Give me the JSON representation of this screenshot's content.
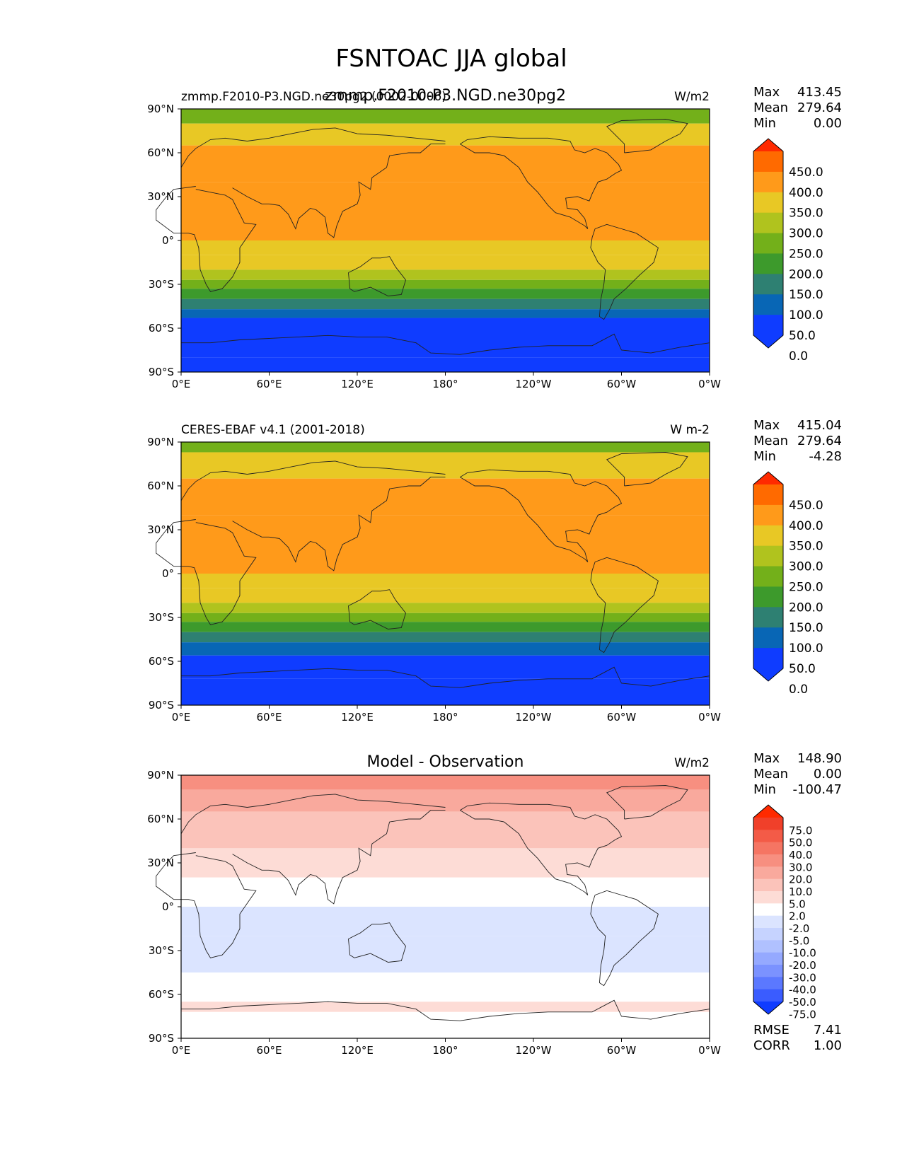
{
  "figure": {
    "title": "FSNTOAC JJA global"
  },
  "chart_data": [
    {
      "type": "heatmap",
      "title_left": "zmmp.F2010-P3.NGD.ne30pg2 (0002-0006)",
      "title_center": "zmmp.F2010-P3.NGD.ne30pg2",
      "units": "W/m2",
      "x_ticks": [
        "0°E",
        "60°E",
        "120°E",
        "180°",
        "120°W",
        "60°W",
        "0°W"
      ],
      "y_ticks": [
        "90°N",
        "60°N",
        "30°N",
        "0°",
        "30°S",
        "60°S",
        "90°S"
      ],
      "stats": [
        {
          "label": "Max",
          "value": "413.45"
        },
        {
          "label": "Mean",
          "value": "279.64"
        },
        {
          "label": "Min",
          "value": "0.00"
        }
      ],
      "colorbar": {
        "levels": [
          "450.0",
          "400.0",
          "350.0",
          "300.0",
          "250.0",
          "200.0",
          "150.0",
          "100.0",
          "50.0",
          "0.0"
        ],
        "colors": [
          "#ff2a00",
          "#ff6a00",
          "#ff9a1a",
          "#e8c825",
          "#b0c31e",
          "#73b01a",
          "#3d9a2c",
          "#2e8072",
          "#0866b5",
          "#0f3cff",
          "#0f3cff"
        ]
      },
      "bands": [
        {
          "lat_top": 90,
          "lat_bottom": 80,
          "value": 220
        },
        {
          "lat_top": 80,
          "lat_bottom": 65,
          "value": 300
        },
        {
          "lat_top": 65,
          "lat_bottom": 40,
          "value": 360
        },
        {
          "lat_top": 40,
          "lat_bottom": 15,
          "value": 390
        },
        {
          "lat_top": 15,
          "lat_bottom": 0,
          "value": 360
        },
        {
          "lat_top": 0,
          "lat_bottom": -10,
          "value": 330
        },
        {
          "lat_top": -10,
          "lat_bottom": -20,
          "value": 300
        },
        {
          "lat_top": -20,
          "lat_bottom": -27,
          "value": 260
        },
        {
          "lat_top": -27,
          "lat_bottom": -33,
          "value": 220
        },
        {
          "lat_top": -33,
          "lat_bottom": -40,
          "value": 180
        },
        {
          "lat_top": -40,
          "lat_bottom": -47,
          "value": 130
        },
        {
          "lat_top": -47,
          "lat_bottom": -53,
          "value": 80
        },
        {
          "lat_top": -53,
          "lat_bottom": -80,
          "value": 30
        },
        {
          "lat_top": -80,
          "lat_bottom": -90,
          "value": 0
        }
      ]
    },
    {
      "type": "heatmap",
      "title_left": "CERES-EBAF v4.1 (2001-2018)",
      "title_center": "",
      "units": "W m-2",
      "x_ticks": [
        "0°E",
        "60°E",
        "120°E",
        "180°",
        "120°W",
        "60°W",
        "0°W"
      ],
      "y_ticks": [
        "90°N",
        "60°N",
        "30°N",
        "0°",
        "30°S",
        "60°S",
        "90°S"
      ],
      "stats": [
        {
          "label": "Max",
          "value": "415.04"
        },
        {
          "label": "Mean",
          "value": "279.64"
        },
        {
          "label": "Min",
          "value": "-4.28"
        }
      ],
      "colorbar": {
        "levels": [
          "450.0",
          "400.0",
          "350.0",
          "300.0",
          "250.0",
          "200.0",
          "150.0",
          "100.0",
          "50.0",
          "0.0"
        ],
        "colors": [
          "#ff2a00",
          "#ff6a00",
          "#ff9a1a",
          "#e8c825",
          "#b0c31e",
          "#73b01a",
          "#3d9a2c",
          "#2e8072",
          "#0866b5",
          "#0f3cff",
          "#0f3cff"
        ]
      },
      "bands": [
        {
          "lat_top": 90,
          "lat_bottom": 83,
          "value": 220
        },
        {
          "lat_top": 83,
          "lat_bottom": 65,
          "value": 300
        },
        {
          "lat_top": 65,
          "lat_bottom": 40,
          "value": 360
        },
        {
          "lat_top": 40,
          "lat_bottom": 15,
          "value": 390
        },
        {
          "lat_top": 15,
          "lat_bottom": 0,
          "value": 360
        },
        {
          "lat_top": 0,
          "lat_bottom": -10,
          "value": 330
        },
        {
          "lat_top": -10,
          "lat_bottom": -20,
          "value": 300
        },
        {
          "lat_top": -20,
          "lat_bottom": -27,
          "value": 260
        },
        {
          "lat_top": -27,
          "lat_bottom": -33,
          "value": 220
        },
        {
          "lat_top": -33,
          "lat_bottom": -40,
          "value": 180
        },
        {
          "lat_top": -40,
          "lat_bottom": -47,
          "value": 130
        },
        {
          "lat_top": -47,
          "lat_bottom": -56,
          "value": 80
        },
        {
          "lat_top": -56,
          "lat_bottom": -72,
          "value": 30
        },
        {
          "lat_top": -72,
          "lat_bottom": -90,
          "value": 0
        }
      ]
    },
    {
      "type": "heatmap",
      "title_left": "",
      "title_center": "Model - Observation",
      "units": "W/m2",
      "x_ticks": [
        "0°E",
        "60°E",
        "120°E",
        "180°",
        "120°W",
        "60°W",
        "0°W"
      ],
      "y_ticks": [
        "90°N",
        "60°N",
        "30°N",
        "0°",
        "30°S",
        "60°S",
        "90°S"
      ],
      "stats": [
        {
          "label": "Max",
          "value": "148.90"
        },
        {
          "label": "Mean",
          "value": "0.00"
        },
        {
          "label": "Min",
          "value": "-100.47"
        }
      ],
      "colorbar": {
        "levels": [
          "75.0",
          "50.0",
          "40.0",
          "30.0",
          "20.0",
          "10.0",
          "5.0",
          "2.0",
          "-2.0",
          "-5.0",
          "-10.0",
          "-20.0",
          "-30.0",
          "-40.0",
          "-50.0",
          "-75.0"
        ],
        "colors": [
          "#ff2a00",
          "#f0402a",
          "#f35b47",
          "#f57563",
          "#f78f80",
          "#f9a99d",
          "#fbc3ba",
          "#fddcd6",
          "#ffffff",
          "#dbe4ff",
          "#c6d3ff",
          "#b0c1ff",
          "#95a9ff",
          "#7b92ff",
          "#5b78ff",
          "#3a5cff",
          "#0f3cff"
        ]
      },
      "bands": [
        {
          "lat_top": 90,
          "lat_bottom": 80,
          "value": 20
        },
        {
          "lat_top": 80,
          "lat_bottom": 65,
          "value": 10
        },
        {
          "lat_top": 65,
          "lat_bottom": 40,
          "value": 5
        },
        {
          "lat_top": 40,
          "lat_bottom": 20,
          "value": 3
        },
        {
          "lat_top": 20,
          "lat_bottom": 0,
          "value": 0
        },
        {
          "lat_top": 0,
          "lat_bottom": -20,
          "value": -4
        },
        {
          "lat_top": -20,
          "lat_bottom": -45,
          "value": -3
        },
        {
          "lat_top": -45,
          "lat_bottom": -65,
          "value": 0
        },
        {
          "lat_top": -65,
          "lat_bottom": -72,
          "value": 3
        },
        {
          "lat_top": -72,
          "lat_bottom": -90,
          "value": 0
        }
      ],
      "metrics": [
        {
          "label": "RMSE",
          "value": "7.41"
        },
        {
          "label": "CORR",
          "value": "1.00"
        }
      ]
    }
  ]
}
